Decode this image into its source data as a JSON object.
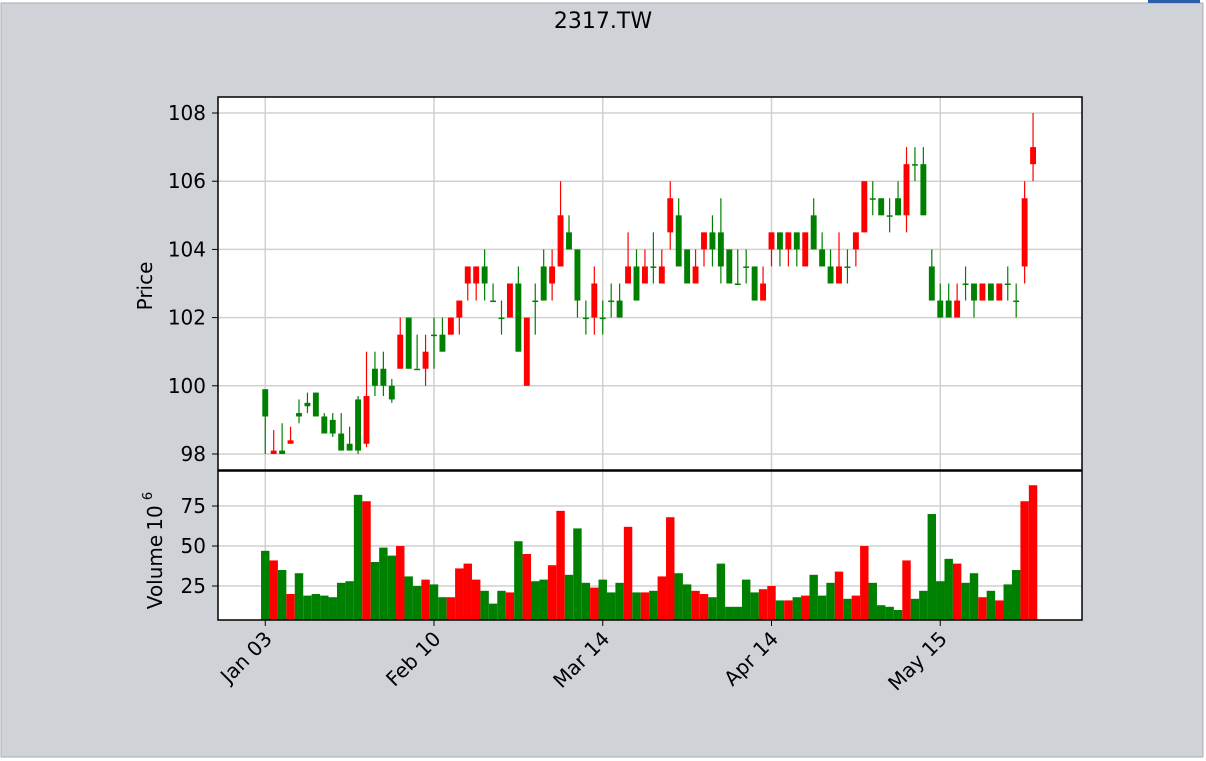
{
  "chart_data": {
    "type": "candlestick",
    "title": "2317.TW",
    "price_label": "Price",
    "volume_label": "Volume",
    "volume_scale_base": "10",
    "volume_scale_exponent": "6",
    "up_color": "#ff0000",
    "down_color": "#008000",
    "grid": true,
    "categories": [
      "Jan 03",
      null,
      null,
      null,
      null,
      null,
      null,
      null,
      null,
      null,
      null,
      null,
      null,
      null,
      null,
      null,
      null,
      null,
      null,
      null,
      "Feb 10",
      null,
      null,
      null,
      null,
      null,
      null,
      null,
      null,
      null,
      null,
      null,
      null,
      null,
      null,
      null,
      null,
      null,
      null,
      null,
      "Mar 14",
      null,
      null,
      null,
      null,
      null,
      null,
      null,
      null,
      null,
      null,
      null,
      null,
      null,
      null,
      null,
      null,
      null,
      null,
      null,
      "Apr 14",
      null,
      null,
      null,
      null,
      null,
      null,
      null,
      null,
      null,
      null,
      null,
      null,
      null,
      null,
      null,
      null,
      null,
      null,
      null,
      "May 15",
      null,
      null,
      null,
      null,
      null,
      null,
      null,
      null,
      null,
      null,
      null
    ],
    "xlim": [
      -5.6,
      96.8
    ],
    "open": [
      99.9,
      98,
      98.1,
      98.3,
      99.2,
      99.5,
      99.8,
      99.1,
      99,
      98.6,
      98.3,
      99.6,
      98.3,
      100.5,
      100.5,
      100,
      100.5,
      102,
      100.5,
      100.5,
      101.5,
      101.5,
      101.5,
      102,
      103,
      103,
      103.5,
      102.5,
      102,
      102,
      103,
      100,
      102.5,
      103.5,
      103,
      103.5,
      104.5,
      104,
      102,
      102,
      102,
      102.5,
      102.5,
      103,
      103.5,
      103,
      103.5,
      103,
      104.5,
      105,
      104,
      103,
      104,
      104.5,
      104.5,
      104,
      103,
      103.5,
      103.5,
      102.5,
      104,
      104.5,
      104,
      104.5,
      103.5,
      105,
      104,
      103.5,
      103,
      103.5,
      104,
      104.5,
      105.5,
      105.5,
      105,
      105.5,
      105,
      106.5,
      106.5,
      103.5,
      102.5,
      102.5,
      102,
      103,
      103,
      102.5,
      103,
      102.5,
      103,
      102.5,
      103.5,
      106.5
    ],
    "high": [
      99.9,
      98.7,
      98.9,
      98.8,
      99.6,
      99.8,
      99.8,
      99.2,
      99.2,
      99.2,
      98.8,
      99.7,
      101,
      101,
      101,
      100.2,
      102,
      102,
      101.5,
      101.5,
      102,
      102,
      102,
      102.5,
      103.5,
      103.5,
      104,
      103,
      102.5,
      103,
      103.5,
      102,
      103,
      104,
      104,
      106,
      105,
      104,
      102.5,
      103.5,
      102.5,
      103,
      103,
      104.5,
      104,
      104,
      104.5,
      104,
      106,
      105.5,
      104,
      104,
      104.5,
      105,
      105.5,
      104,
      104,
      104,
      103.5,
      103.5,
      104.5,
      104.5,
      104.5,
      104.5,
      104.5,
      105.5,
      104.5,
      104,
      104.5,
      104,
      104.5,
      106,
      106,
      105.5,
      105.5,
      106,
      107,
      107,
      107,
      104,
      103,
      103,
      103,
      103.5,
      103,
      103,
      103,
      103,
      103.5,
      103,
      106,
      108
    ],
    "low": [
      98,
      98,
      98,
      98.3,
      98.9,
      99.2,
      99.1,
      98.6,
      98.5,
      98.1,
      98.1,
      98,
      98.2,
      99.7,
      99.7,
      99.5,
      100.5,
      100.5,
      100.5,
      100,
      100.5,
      101,
      101.5,
      101.5,
      102.5,
      102.5,
      102.5,
      102.5,
      101.5,
      102,
      101,
      100,
      101.5,
      102.5,
      102.5,
      103.5,
      104,
      102,
      101.5,
      101.5,
      101.5,
      102,
      102,
      103,
      102.5,
      103,
      103,
      103,
      104,
      103.5,
      103,
      103,
      103.5,
      103.5,
      103,
      103,
      103,
      103,
      102.5,
      102.5,
      103.5,
      103.5,
      103.5,
      103.5,
      103.5,
      104,
      103.5,
      103,
      103,
      103,
      103.5,
      104.5,
      105,
      105,
      104.5,
      105,
      104.5,
      106,
      105,
      102.5,
      102,
      102,
      102,
      102.5,
      102,
      102.5,
      102.5,
      102.5,
      102.5,
      102,
      103,
      106
    ],
    "close": [
      99.1,
      98.1,
      98,
      98.4,
      99.1,
      99.4,
      99.1,
      98.6,
      98.6,
      98.1,
      98.1,
      98.1,
      99.7,
      100,
      100,
      99.6,
      101.5,
      100.5,
      100.5,
      101,
      101.5,
      101,
      102,
      102.5,
      103.5,
      103.5,
      103,
      102.5,
      102,
      103,
      101,
      102,
      102.5,
      102.5,
      103.5,
      105,
      104,
      102.5,
      102,
      103,
      102,
      102.5,
      102,
      103.5,
      102.5,
      103.5,
      103.5,
      103.5,
      105.5,
      103.5,
      103,
      103.5,
      104.5,
      104,
      103.5,
      103,
      103,
      103.5,
      102.5,
      103,
      104.5,
      104,
      104.5,
      104,
      104.5,
      104,
      103.5,
      103,
      103.5,
      103.5,
      104.5,
      106,
      105.5,
      105,
      105,
      105,
      106.5,
      106.5,
      105,
      102.5,
      102,
      102,
      102.5,
      103,
      102.5,
      103,
      102.5,
      103,
      103,
      102.5,
      105.5,
      107
    ],
    "ylim": [
      97.53,
      108.47
    ],
    "yticks": [
      98,
      100,
      102,
      104,
      106,
      108
    ],
    "volume": [
      47,
      41,
      35,
      20,
      33,
      19,
      20,
      19,
      18,
      27,
      28,
      82,
      78,
      40,
      49,
      44,
      50,
      31,
      25,
      29,
      26,
      18,
      18,
      36,
      39,
      29,
      22,
      14,
      22,
      21,
      53,
      45,
      28,
      29,
      38,
      72,
      32,
      61,
      27,
      24,
      29,
      21,
      27,
      62,
      21,
      21,
      22,
      31,
      68,
      33,
      26,
      22,
      20,
      18,
      39,
      12,
      12,
      29,
      21,
      23,
      25,
      16,
      16,
      18,
      19,
      32,
      19,
      27,
      34,
      17,
      19,
      50,
      27,
      13,
      12,
      10,
      41,
      17,
      22,
      70,
      28,
      42,
      39,
      27,
      33,
      18,
      22,
      16,
      26,
      35,
      78,
      88
    ],
    "volume_ylim": [
      3.75,
      96.9
    ],
    "volume_yticks": [
      25,
      50,
      75
    ]
  }
}
